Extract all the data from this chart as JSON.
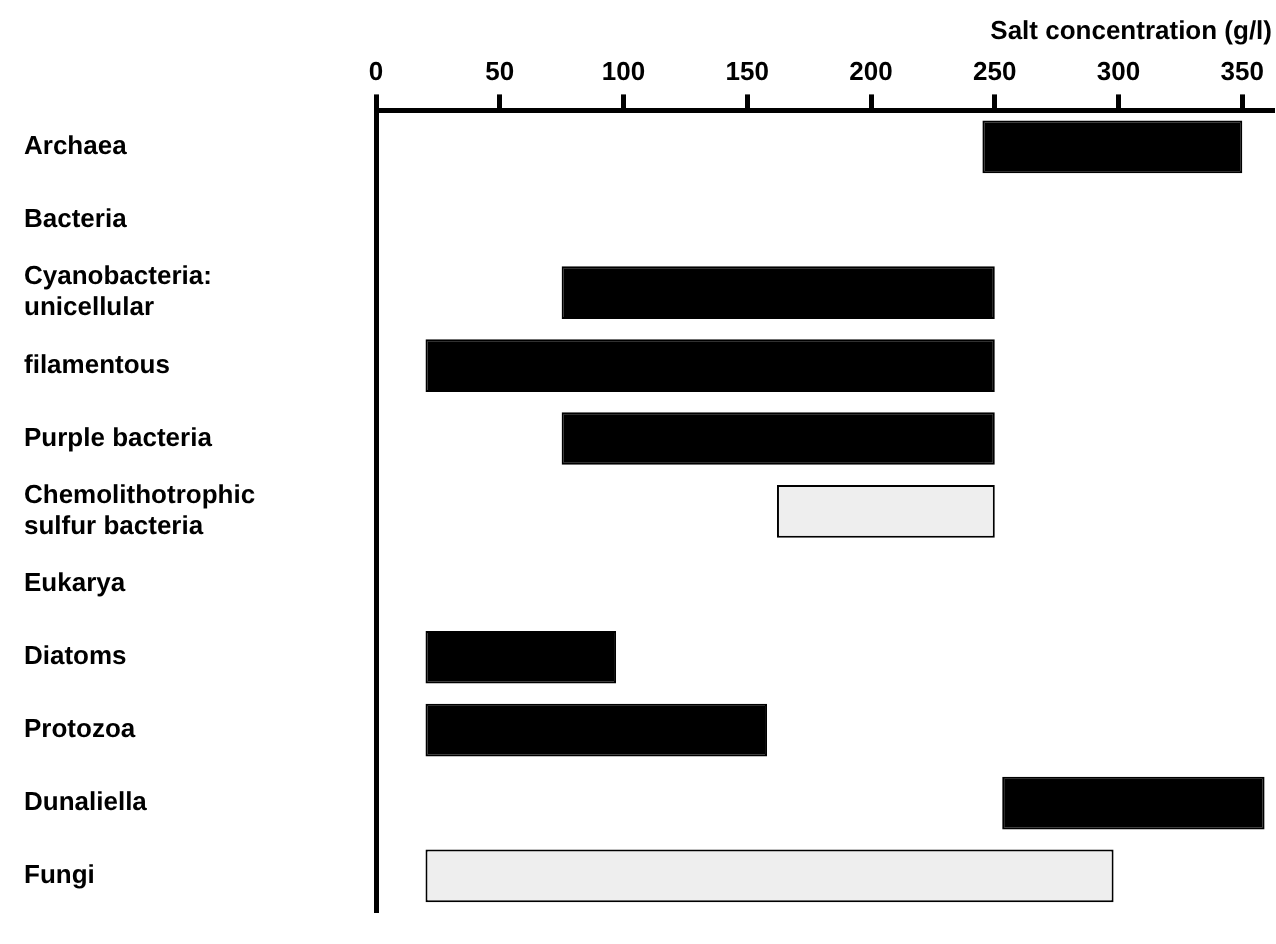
{
  "chart_data": {
    "type": "bar",
    "orientation": "horizontal",
    "xlabel": "Salt concentration (g/l)",
    "categories": [
      "Archaea",
      "Bacteria",
      "Cyanobacteria:\nunicellular",
      "filamentous",
      "Purple bacteria",
      "Chemolithotrophic\nsulfur bacteria",
      "Eukarya",
      "Diatoms",
      "Protozoa",
      "Dunaliella",
      "Fungi"
    ],
    "base": [
      245,
      null,
      75,
      20,
      75,
      162,
      null,
      20,
      20,
      253,
      20
    ],
    "values": [
      105,
      null,
      175,
      230,
      175,
      88,
      null,
      77,
      138,
      106,
      278
    ],
    "colors": [
      "#000000",
      "#000000",
      "#000000",
      "#000000",
      "#000000",
      "#eeeeee",
      "#000000",
      "#000000",
      "#000000",
      "#000000",
      "#eeeeee"
    ],
    "xlim": [
      0,
      362
    ],
    "xticks": [
      0,
      50,
      100,
      150,
      200,
      250,
      300,
      350
    ],
    "grid": false,
    "legend": false
  }
}
